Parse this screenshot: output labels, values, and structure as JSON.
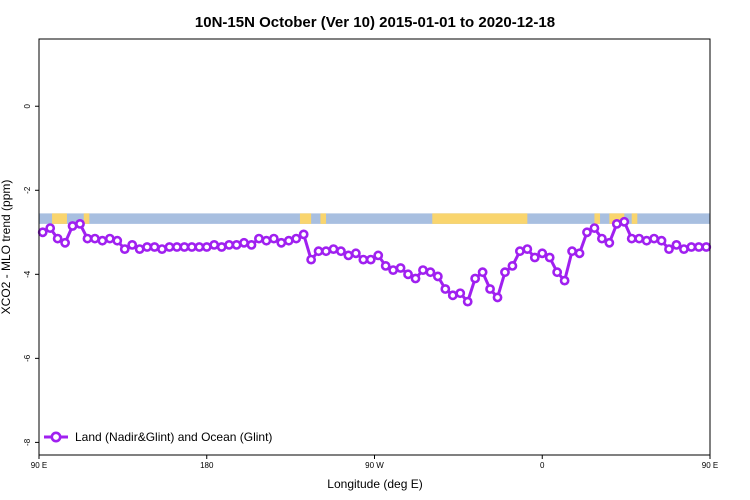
{
  "chart_data": {
    "type": "line",
    "title": "10N-15N October (Ver 10)   2015-01-01 to 2020-12-18",
    "xlabel": "Longitude (deg E)",
    "ylabel": "XCO2 - MLO trend (ppm)",
    "xlim": [
      90,
      450
    ],
    "ylim": [
      -8.3,
      1.6
    ],
    "xticks": [
      {
        "value": 90,
        "label": "90 E"
      },
      {
        "value": 180,
        "label": "180"
      },
      {
        "value": 270,
        "label": "90 W"
      },
      {
        "value": 360,
        "label": "0"
      },
      {
        "value": 450,
        "label": "90 E"
      },
      {
        "value": 540,
        "label": "180"
      }
    ],
    "yticks": [
      {
        "value": 0,
        "label": "0"
      },
      {
        "value": -2,
        "label": "-2"
      },
      {
        "value": -4,
        "label": "-4"
      },
      {
        "value": -6,
        "label": "-6"
      },
      {
        "value": -8,
        "label": "-8"
      }
    ],
    "grid": false,
    "legend_position": "bottom-left",
    "colors": {
      "series": "#a020f0",
      "ocean": "#a8bfe0",
      "land": "#f9d56e"
    },
    "land_mask": {
      "y_range": [
        -2.8,
        -2.55
      ],
      "land_segments": [
        [
          97,
          105
        ],
        [
          114,
          117
        ],
        [
          230,
          236
        ],
        [
          241,
          244
        ],
        [
          301,
          352
        ],
        [
          388,
          391
        ],
        [
          396,
          404
        ],
        [
          408,
          411
        ]
      ]
    },
    "series": [
      {
        "name": "Land (Nadir&Glint) and Ocean (Glint)",
        "x": [
          92,
          96,
          100,
          104,
          108,
          112,
          116,
          120,
          124,
          128,
          132,
          136,
          140,
          144,
          148,
          152,
          156,
          160,
          164,
          168,
          172,
          176,
          180,
          184,
          188,
          192,
          196,
          200,
          204,
          208,
          212,
          216,
          220,
          224,
          228,
          232,
          236,
          240,
          244,
          248,
          252,
          256,
          260,
          264,
          268,
          272,
          276,
          280,
          284,
          288,
          292,
          296,
          300,
          304,
          308,
          312,
          316,
          320,
          324,
          328,
          332,
          336,
          340,
          344,
          348,
          352,
          356,
          360,
          364,
          368,
          372,
          376,
          380,
          384,
          388,
          392,
          396,
          400,
          404,
          408,
          412,
          416,
          420,
          424,
          428,
          432,
          436,
          440,
          444,
          448
        ],
        "y": [
          -3.0,
          -2.9,
          -3.15,
          -3.25,
          -2.85,
          -2.8,
          -3.15,
          -3.15,
          -3.2,
          -3.15,
          -3.2,
          -3.4,
          -3.3,
          -3.4,
          -3.35,
          -3.35,
          -3.4,
          -3.35,
          -3.35,
          -3.35,
          -3.35,
          -3.35,
          -3.35,
          -3.3,
          -3.35,
          -3.3,
          -3.3,
          -3.25,
          -3.3,
          -3.15,
          -3.2,
          -3.15,
          -3.25,
          -3.2,
          -3.15,
          -3.05,
          -3.65,
          -3.45,
          -3.45,
          -3.4,
          -3.45,
          -3.55,
          -3.5,
          -3.65,
          -3.65,
          -3.55,
          -3.8,
          -3.9,
          -3.85,
          -4.0,
          -4.1,
          -3.9,
          -3.95,
          -4.05,
          -4.35,
          -4.5,
          -4.45,
          -4.65,
          -4.1,
          -3.95,
          -4.35,
          -4.55,
          -3.95,
          -3.8,
          -3.45,
          -3.4,
          -3.6,
          -3.5,
          -3.6,
          -3.95,
          -4.15,
          -3.45,
          -3.5,
          -3.0,
          -2.9,
          -3.15,
          -3.25,
          -2.8,
          -2.75,
          -3.15,
          -3.15,
          -3.2,
          -3.15,
          -3.2,
          -3.4,
          -3.3,
          -3.4,
          -3.35,
          -3.35,
          -3.35
        ]
      }
    ]
  }
}
